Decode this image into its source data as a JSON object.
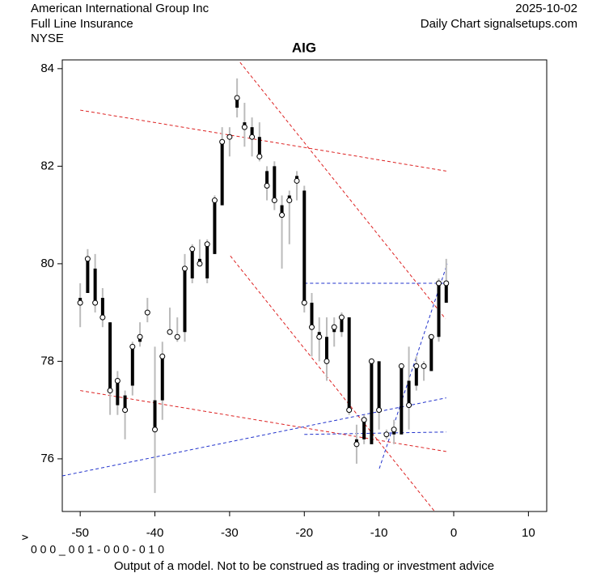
{
  "chart_data": {
    "type": "candlestick",
    "title": "AIG",
    "header_left": [
      "American International Group Inc",
      "Full Line Insurance",
      "NYSE"
    ],
    "header_right": [
      "2025-10-02",
      "Daily Chart signalsetups.com"
    ],
    "ylabel": "v",
    "code": "0 0 0 _ 0 0 1 - 0 0 0 - 0 1 0",
    "note": "Output of a model. Not to be construed as trading or investment advice",
    "xlim": [
      -52.4,
      12.45
    ],
    "ylim": [
      74.92,
      84.18
    ],
    "xticks": [
      -50,
      -40,
      -30,
      -20,
      -10,
      0,
      10
    ],
    "yticks": [
      76,
      78,
      80,
      82,
      84
    ],
    "range_color": "#bbbbbb",
    "body_color": "#000000",
    "x": [
      -50,
      -49,
      -48,
      -47,
      -46,
      -45,
      -44,
      -43,
      -42,
      -41,
      -40,
      -39,
      -38,
      -37,
      -36,
      -35,
      -34,
      -33,
      -32,
      -31,
      -30,
      -29,
      -28,
      -27,
      -26,
      -25,
      -24,
      -23,
      -22,
      -21,
      -20,
      -19,
      -18,
      -17,
      -16,
      -15,
      -14,
      -13,
      -12,
      -11,
      -10,
      -9,
      -8,
      -7,
      -6,
      -5,
      -4,
      -3,
      -2,
      -1
    ],
    "open": [
      79.3,
      79.4,
      79.9,
      79.3,
      78.8,
      77.1,
      77.3,
      77.5,
      78.4,
      79.0,
      77.2,
      77.2,
      78.6,
      78.5,
      78.6,
      79.7,
      80.1,
      79.7,
      80.2,
      81.2,
      82.6,
      83.2,
      82.9,
      82.8,
      82.6,
      81.9,
      82.0,
      81.2,
      81.4,
      81.8,
      81.5,
      79.2,
      78.6,
      78.5,
      78.6,
      78.6,
      78.9,
      76.4,
      76.4,
      76.3,
      78.0,
      76.5,
      76.5,
      76.5,
      77.6,
      77.5,
      77.9,
      77.8,
      78.5,
      79.2
    ],
    "high": [
      79.6,
      80.3,
      80.2,
      79.5,
      78.8,
      77.8,
      77.4,
      78.4,
      78.8,
      79.3,
      78.3,
      78.4,
      79.1,
      78.9,
      80.2,
      80.4,
      80.5,
      80.5,
      81.4,
      82.8,
      82.8,
      83.8,
      83.3,
      83.0,
      82.9,
      82.0,
      82.1,
      81.4,
      81.5,
      81.9,
      81.6,
      79.4,
      78.9,
      78.9,
      78.9,
      79.0,
      78.9,
      76.7,
      76.9,
      78.0,
      78.0,
      76.6,
      76.8,
      77.9,
      78.3,
      78.1,
      78.0,
      78.5,
      79.7,
      80.1
    ],
    "low": [
      78.7,
      79.4,
      79.0,
      78.7,
      76.9,
      76.9,
      76.4,
      77.3,
      78.3,
      78.8,
      75.3,
      76.8,
      78.6,
      78.4,
      78.4,
      79.6,
      80.0,
      79.6,
      80.2,
      81.2,
      82.2,
      83.0,
      82.4,
      82.2,
      82.1,
      81.3,
      81.1,
      79.9,
      80.4,
      81.3,
      79.0,
      78.1,
      78.0,
      77.6,
      78.3,
      78.5,
      76.9,
      75.9,
      76.3,
      76.3,
      76.6,
      76.4,
      76.3,
      76.5,
      76.6,
      77.4,
      77.6,
      77.8,
      78.4,
      79.2
    ],
    "close": [
      79.2,
      80.1,
      79.2,
      78.9,
      77.4,
      77.6,
      77.0,
      78.3,
      78.5,
      79.0,
      76.6,
      78.1,
      78.6,
      78.5,
      79.9,
      80.3,
      80.0,
      80.4,
      81.3,
      82.5,
      82.6,
      83.4,
      82.8,
      82.6,
      82.2,
      81.6,
      81.3,
      81.0,
      81.3,
      81.7,
      79.2,
      78.7,
      78.5,
      78.0,
      78.7,
      78.9,
      77.0,
      76.3,
      76.8,
      78.0,
      77.0,
      76.5,
      76.6,
      77.9,
      77.1,
      77.9,
      77.9,
      78.5,
      79.6,
      79.6
    ],
    "trend_lines": [
      {
        "color": "#dd2222",
        "x": [
          -50,
          -1
        ],
        "y": [
          83.15,
          81.9
        ]
      },
      {
        "color": "#dd2222",
        "x": [
          -50,
          -1
        ],
        "y": [
          77.4,
          76.15
        ]
      },
      {
        "color": "#dd2222",
        "x": [
          -28.6,
          -1.1
        ],
        "y": [
          84.13,
          78.87
        ]
      },
      {
        "color": "#dd2222",
        "x": [
          -29.9,
          -2.6
        ],
        "y": [
          80.16,
          74.93
        ]
      },
      {
        "color": "#2233cc",
        "x": [
          -52.4,
          -1
        ],
        "y": [
          75.65,
          77.25
        ]
      },
      {
        "color": "#2233cc",
        "x": [
          -20,
          -1
        ],
        "y": [
          79.6,
          79.6
        ]
      },
      {
        "color": "#2233cc",
        "x": [
          -20,
          -1
        ],
        "y": [
          76.5,
          76.55
        ]
      },
      {
        "color": "#2233cc",
        "x": [
          -9.96,
          -0.87
        ],
        "y": [
          75.8,
          80.0
        ]
      }
    ]
  }
}
